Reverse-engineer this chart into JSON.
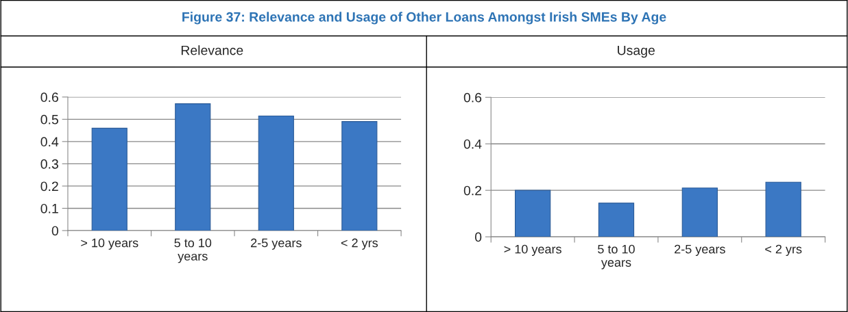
{
  "chart_data": [
    {
      "type": "bar",
      "title": "Relevance",
      "annotations": [
        "Figure 37: Relevance and Usage of Other Loans Amongst Irish SMEs By Age"
      ],
      "categories": [
        "> 10 years",
        "5 to 10\nyears",
        "2-5 years",
        "< 2 yrs"
      ],
      "values": [
        0.46,
        0.57,
        0.515,
        0.49
      ],
      "color": "#3b78c4",
      "ylim": [
        0,
        0.6
      ],
      "yticks": [
        0,
        0.1,
        0.2,
        0.3,
        0.4,
        0.5,
        0.6
      ],
      "grid": "y",
      "legend": false
    },
    {
      "type": "bar",
      "title": "Usage",
      "categories": [
        "> 10 years",
        "5 to 10\nyears",
        "2-5 years",
        "< 2 yrs"
      ],
      "values": [
        0.2,
        0.145,
        0.21,
        0.235
      ],
      "color": "#3b78c4",
      "ylim": [
        0,
        0.6
      ],
      "yticks": [
        0,
        0.2,
        0.4,
        0.6
      ],
      "grid": "y",
      "legend": false
    }
  ]
}
